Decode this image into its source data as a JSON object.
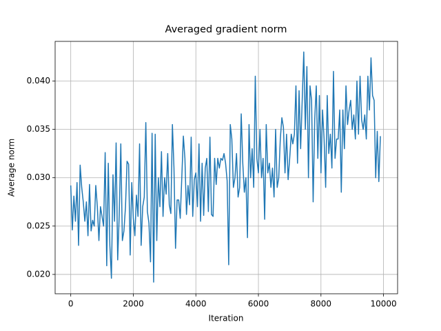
{
  "chart_data": {
    "type": "line",
    "title": "Averaged gradient norm",
    "x_label": "Iteration",
    "y_label": "Average norm",
    "x": [
      0,
      50,
      100,
      150,
      200,
      250,
      300,
      350,
      400,
      450,
      500,
      550,
      600,
      650,
      700,
      750,
      800,
      850,
      900,
      950,
      1000,
      1050,
      1100,
      1150,
      1200,
      1250,
      1300,
      1350,
      1400,
      1450,
      1500,
      1550,
      1600,
      1650,
      1700,
      1750,
      1800,
      1850,
      1900,
      1950,
      2000,
      2050,
      2100,
      2150,
      2200,
      2250,
      2300,
      2350,
      2400,
      2450,
      2500,
      2550,
      2600,
      2650,
      2700,
      2750,
      2800,
      2850,
      2900,
      2950,
      3000,
      3050,
      3100,
      3150,
      3200,
      3250,
      3300,
      3350,
      3400,
      3450,
      3500,
      3550,
      3600,
      3650,
      3700,
      3750,
      3800,
      3850,
      3900,
      3950,
      4000,
      4050,
      4100,
      4150,
      4200,
      4250,
      4300,
      4350,
      4400,
      4450,
      4500,
      4550,
      4600,
      4650,
      4700,
      4750,
      4800,
      4850,
      4900,
      4950,
      5000,
      5050,
      5100,
      5150,
      5200,
      5250,
      5300,
      5350,
      5400,
      5450,
      5500,
      5550,
      5600,
      5650,
      5700,
      5750,
      5800,
      5850,
      5900,
      5950,
      6000,
      6050,
      6100,
      6150,
      6200,
      6250,
      6300,
      6350,
      6400,
      6450,
      6500,
      6550,
      6600,
      6650,
      6700,
      6750,
      6800,
      6850,
      6900,
      6950,
      7000,
      7050,
      7100,
      7150,
      7200,
      7250,
      7300,
      7350,
      7400,
      7450,
      7500,
      7550,
      7600,
      7650,
      7700,
      7750,
      7800,
      7850,
      7900,
      7950,
      8000,
      8050,
      8100,
      8150,
      8200,
      8250,
      8300,
      8350,
      8400,
      8450,
      8500,
      8550,
      8600,
      8650,
      8700,
      8750,
      8800,
      8850,
      8900,
      8950,
      9000,
      9050,
      9100,
      9150,
      9200,
      9250,
      9300,
      9350,
      9400,
      9450,
      9500,
      9550,
      9600,
      9650,
      9700,
      9750,
      9800,
      9850,
      9900
    ],
    "series": [
      {
        "color": "#1f77b4",
        "values": [
          0.0292,
          0.0246,
          0.0281,
          0.0255,
          0.0295,
          0.023,
          0.0313,
          0.029,
          0.0275,
          0.0255,
          0.0275,
          0.024,
          0.0293,
          0.0245,
          0.0256,
          0.025,
          0.0292,
          0.027,
          0.0235,
          0.027,
          0.026,
          0.025,
          0.0326,
          0.0209,
          0.0315,
          0.023,
          0.0196,
          0.0303,
          0.0255,
          0.0336,
          0.0215,
          0.0262,
          0.0335,
          0.0235,
          0.0245,
          0.027,
          0.0317,
          0.0314,
          0.022,
          0.0295,
          0.0258,
          0.024,
          0.0282,
          0.026,
          0.0335,
          0.023,
          0.027,
          0.028,
          0.0357,
          0.0265,
          0.0253,
          0.0213,
          0.0346,
          0.0192,
          0.0345,
          0.0235,
          0.03,
          0.027,
          0.0327,
          0.026,
          0.03,
          0.0283,
          0.0325,
          0.0272,
          0.0263,
          0.0355,
          0.031,
          0.0227,
          0.0277,
          0.0277,
          0.0258,
          0.03,
          0.0343,
          0.032,
          0.0262,
          0.0292,
          0.0272,
          0.0342,
          0.026,
          0.0298,
          0.0305,
          0.027,
          0.0335,
          0.0255,
          0.0315,
          0.0261,
          0.031,
          0.032,
          0.0265,
          0.0342,
          0.0262,
          0.026,
          0.032,
          0.0293,
          0.032,
          0.031,
          0.032,
          0.0318,
          0.0325,
          0.0315,
          0.0297,
          0.021,
          0.0355,
          0.034,
          0.029,
          0.03,
          0.0325,
          0.028,
          0.029,
          0.0366,
          0.0315,
          0.0285,
          0.03,
          0.0238,
          0.0355,
          0.03,
          0.033,
          0.029,
          0.0405,
          0.032,
          0.0305,
          0.035,
          0.03,
          0.032,
          0.0257,
          0.0355,
          0.0305,
          0.0315,
          0.029,
          0.031,
          0.028,
          0.035,
          0.029,
          0.03,
          0.034,
          0.0362,
          0.0352,
          0.0305,
          0.0345,
          0.0298,
          0.032,
          0.0345,
          0.0335,
          0.0345,
          0.0395,
          0.0315,
          0.039,
          0.033,
          0.038,
          0.043,
          0.035,
          0.0415,
          0.03,
          0.0395,
          0.038,
          0.0275,
          0.036,
          0.0395,
          0.032,
          0.0385,
          0.0305,
          0.037,
          0.034,
          0.029,
          0.0385,
          0.0325,
          0.0345,
          0.031,
          0.041,
          0.032,
          0.034,
          0.034,
          0.037,
          0.0285,
          0.037,
          0.033,
          0.0395,
          0.0355,
          0.037,
          0.038,
          0.035,
          0.0365,
          0.034,
          0.04,
          0.0345,
          0.0405,
          0.036,
          0.035,
          0.0365,
          0.034,
          0.0405,
          0.037,
          0.0424,
          0.0385,
          0.038,
          0.03,
          0.0348,
          0.0296,
          0.0343
        ]
      }
    ],
    "xlim": [
      -500,
      10450
    ],
    "ylim": [
      0.018,
      0.0441
    ],
    "xticks": [
      0,
      2000,
      4000,
      6000,
      8000,
      10000
    ],
    "yticks": [
      {
        "value": 0.02,
        "label": "0.020"
      },
      0.025,
      {
        "value": 0.03,
        "label": "0.030"
      },
      0.035,
      {
        "value": 0.04,
        "label": "0.040"
      }
    ],
    "grid": true
  }
}
